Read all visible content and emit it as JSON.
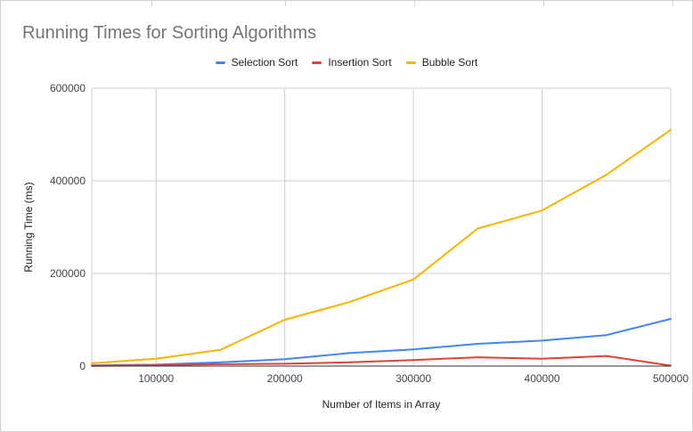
{
  "chart_data": {
    "type": "line",
    "title": "Running Times for Sorting Algorithms",
    "xlabel": "Number of Items in Array",
    "ylabel": "Running Time (ms)",
    "xlim": [
      50000,
      500000
    ],
    "ylim": [
      0,
      600000
    ],
    "x": [
      50000,
      100000,
      150000,
      200000,
      250000,
      300000,
      350000,
      400000,
      450000,
      500000
    ],
    "x_ticks": [
      "100000",
      "200000",
      "300000",
      "400000",
      "500000"
    ],
    "x_tick_values": [
      100000,
      200000,
      300000,
      400000,
      500000
    ],
    "y_ticks": [
      "0",
      "200000",
      "400000",
      "600000"
    ],
    "y_tick_values": [
      0,
      200000,
      400000,
      600000
    ],
    "legend_position": "top",
    "grid": true,
    "series": [
      {
        "name": "Selection Sort",
        "color": "#4285f4",
        "values": [
          1500,
          3000,
          8000,
          15000,
          28000,
          36000,
          48000,
          55000,
          67000,
          102000
        ]
      },
      {
        "name": "Insertion Sort",
        "color": "#db4437",
        "values": [
          500,
          2000,
          4000,
          5000,
          8000,
          13000,
          19000,
          16000,
          22000,
          1000
        ]
      },
      {
        "name": "Bubble Sort",
        "color": "#f4b400",
        "values": [
          6000,
          16000,
          35000,
          100000,
          138000,
          187000,
          297000,
          336000,
          413000,
          510000
        ]
      }
    ]
  }
}
